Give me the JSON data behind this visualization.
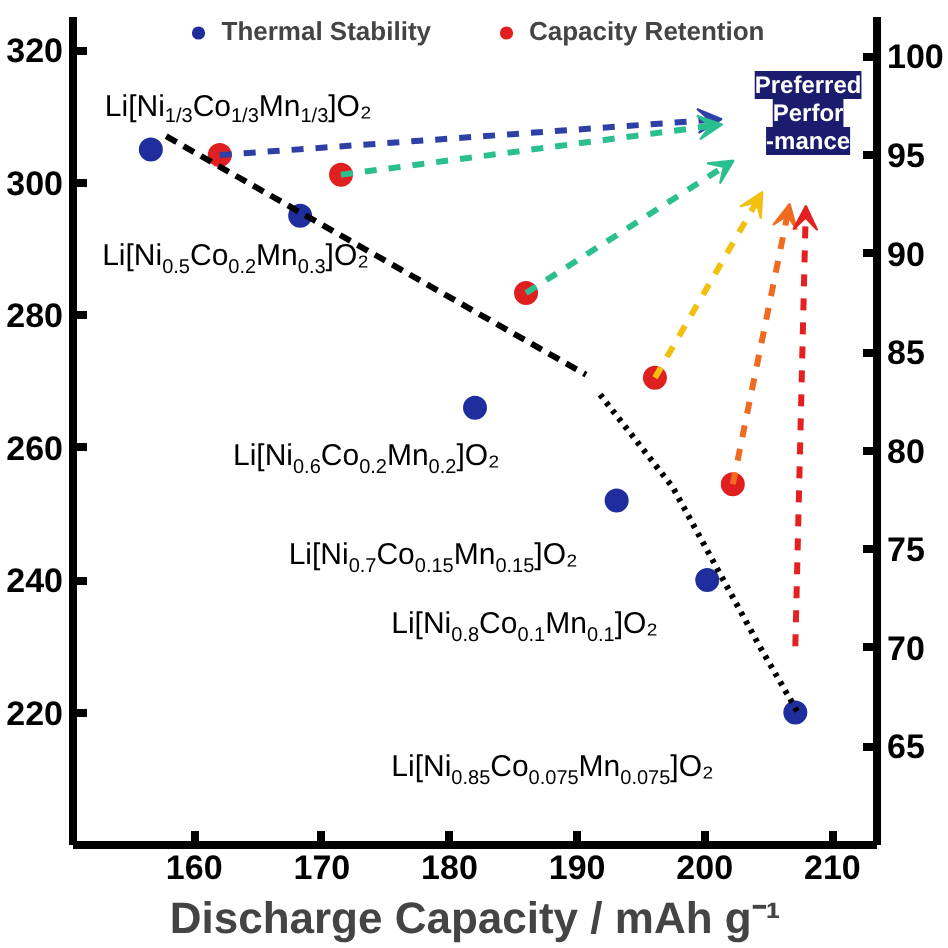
{
  "chart_data": {
    "type": "scatter",
    "xlabel": "Discharge Capacity / mAh g⁻¹",
    "xlim": [
      150.5,
      213.5
    ],
    "xticks": [
      160,
      170,
      180,
      190,
      200,
      210
    ],
    "ylim": [
      200,
      325
    ],
    "yticks": [
      220,
      240,
      260,
      280,
      300,
      320
    ],
    "y2lim": [
      60,
      102
    ],
    "y2ticks": [
      65,
      70,
      75,
      80,
      85,
      90,
      95,
      100
    ],
    "grid": false,
    "legend": "top",
    "marker": "circle",
    "series": [
      {
        "name": "Thermal Stability",
        "color": "#1f2e9c",
        "x": [
          156.6,
          168.3,
          182.0,
          193.1,
          200.2,
          207.1
        ],
        "values": [
          305,
          295,
          266,
          252,
          240,
          220
        ]
      },
      {
        "name": "Capacity Retention",
        "color": "#e02020",
        "axis": "y2",
        "x": [
          162.0,
          171.5,
          186.0,
          196.1,
          202.2
        ],
        "values": [
          95,
          94,
          88,
          83.7,
          78.3
        ]
      },
      {
        "type": "line",
        "color": "#000000",
        "line_style": "dashed",
        "marker": "none",
        "x": [
          157.8,
          190.7
        ],
        "values": [
          307,
          271
        ]
      },
      {
        "type": "line",
        "color": "#000000",
        "line_style": "dotted",
        "marker": "none",
        "x": [
          191.8,
          197.5,
          204.3,
          207.3
        ],
        "values": [
          268,
          254,
          230,
          220
        ]
      }
    ],
    "annotations": [
      {
        "text": "Li[Ni$_{1/3}$Co$_{1/3}$Mn$_{1/3}$]O₂",
        "x": 156.6,
        "y": 305
      },
      {
        "text": "Li[Ni$_{0.5}$Co$_{0.2}$Mn$_{0.3}$]O₂",
        "x": 168.3,
        "y": 295
      },
      {
        "text": "Li[Ni$_{0.6}$Co$_{0.2}$Mn$_{0.2}$]O₂",
        "x": 182.0,
        "y": 266
      },
      {
        "text": "Li[Ni$_{0.7}$Co$_{0.15}$Mn$_{0.15}$]O₂",
        "x": 193.1,
        "y": 252
      },
      {
        "text": "Li[Ni$_{0.8}$Co$_{0.1}$Mn$_{0.1}$]O₂",
        "x": 200.2,
        "y": 240
      },
      {
        "text": "Li[Ni$_{0.85}$Co$_{0.075}$Mn$_{0.075}$]O₂",
        "x": 207.1,
        "y": 220
      },
      "Preferred\nPerfor\n-mance"
    ]
  }
}
